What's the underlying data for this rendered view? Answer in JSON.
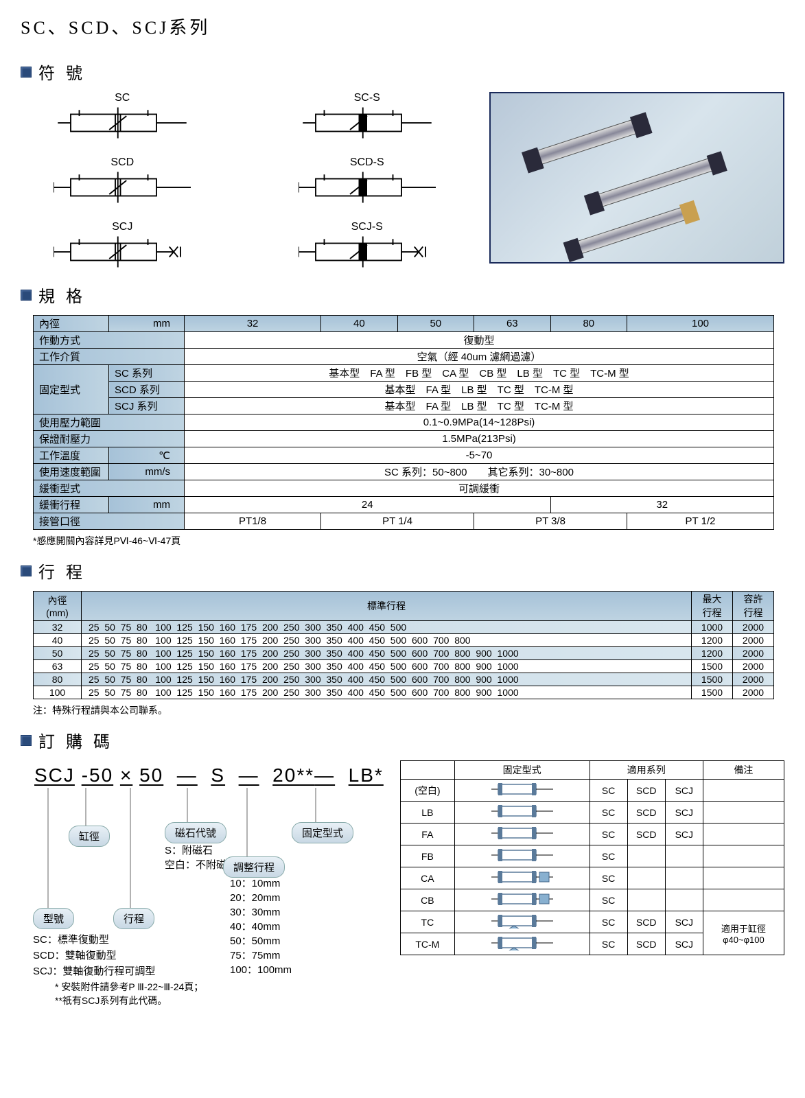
{
  "title": "SC、SCD、SCJ系列",
  "sections": {
    "symbols": "符號",
    "spec": "規格",
    "stroke": "行程",
    "order": "訂購碼"
  },
  "symbols": [
    "SC",
    "SC-S",
    "SCD",
    "SCD-S",
    "SCJ",
    "SCJ-S"
  ],
  "spec": {
    "cols": [
      "32",
      "40",
      "50",
      "63",
      "80",
      "100"
    ],
    "rows": {
      "bore": "內徑",
      "bore_unit": "mm",
      "action": "作動方式",
      "action_val": "復動型",
      "medium": "工作介質",
      "medium_val": "空氣（經 40um 濾網過濾）",
      "mount": "固定型式",
      "sc_series": "SC 系列",
      "sc_val": "基本型　FA 型　FB 型　CA 型　CB 型　LB 型　TC 型　TC-M 型",
      "scd_series": "SCD 系列",
      "scd_val": "基本型　FA 型　LB 型　TC 型　TC-M 型",
      "scj_series": "SCJ 系列",
      "scj_val": "基本型　FA 型　LB 型　TC 型　TC-M 型",
      "pressure": "使用壓力範圍",
      "pressure_val": "0.1~0.9MPa(14~128Psi)",
      "proof": "保證耐壓力",
      "proof_val": "1.5MPa(213Psi)",
      "temp": "工作溫度",
      "temp_unit": "℃",
      "temp_val": "-5~70",
      "speed": "使用速度範圍",
      "speed_unit": "mm/s",
      "speed_val": "SC 系列：50~800　　其它系列：30~800",
      "cushion": "緩衝型式",
      "cushion_val": "可調緩衝",
      "cushion_stroke": "緩衝行程",
      "cushion_stroke_unit": "mm",
      "cushion_24": "24",
      "cushion_32": "32",
      "port": "接管口徑",
      "port_vals": [
        "PT1/8",
        "PT 1/4",
        "PT 3/8",
        "PT 1/2"
      ]
    },
    "footnote": "*感應開關內容詳見PⅥ-46~Ⅵ-47頁"
  },
  "stroke": {
    "bore_hdr": "內徑\n(mm)",
    "std_hdr": "標準行程",
    "max_hdr": "最大\n行程",
    "tol_hdr": "容許\n行程",
    "rows": [
      {
        "b": "32",
        "s": "25  50  75  80   100  125  150  160  175  200  250  300  350  400  450  500",
        "m": "1000",
        "t": "2000"
      },
      {
        "b": "40",
        "s": "25  50  75  80   100  125  150  160  175  200  250  300  350  400  450  500  600  700  800",
        "m": "1200",
        "t": "2000"
      },
      {
        "b": "50",
        "s": "25  50  75  80   100  125  150  160  175  200  250  300  350  400  450  500  600  700  800  900  1000",
        "m": "1200",
        "t": "2000"
      },
      {
        "b": "63",
        "s": "25  50  75  80   100  125  150  160  175  200  250  300  350  400  450  500  600  700  800  900  1000",
        "m": "1500",
        "t": "2000"
      },
      {
        "b": "80",
        "s": "25  50  75  80   100  125  150  160  175  200  250  300  350  400  450  500  600  700  800  900  1000",
        "m": "1500",
        "t": "2000"
      },
      {
        "b": "100",
        "s": "25  50  75  80   100  125  150  160  175  200  250  300  350  400  450  500  600  700  800  900  1000",
        "m": "1500",
        "t": "2000"
      }
    ],
    "note": "注：特殊行程請與本公司聯系。"
  },
  "order": {
    "code": [
      "SCJ",
      "-50",
      "×",
      "50",
      "—",
      "S",
      "—",
      "20**",
      "—",
      "LB*"
    ],
    "pills": {
      "model": "型號",
      "bore": "缸徑",
      "stroke": "行程",
      "magnet": "磁石代號",
      "adjust": "調整行程",
      "mount": "固定型式"
    },
    "magnet_notes": [
      "S：附磁石",
      "空白：不附磁石"
    ],
    "adjust_notes": [
      "10：10mm",
      "20：20mm",
      "30：30mm",
      "40：40mm",
      "50：50mm",
      "75：75mm",
      "100：100mm"
    ],
    "model_notes": [
      "SC：標準復動型",
      "SCD：雙軸復動型",
      "SCJ：雙軸復動行程可調型"
    ],
    "footnotes": [
      "* 安裝附件請參考P Ⅲ-22~Ⅲ-24頁；",
      "**祇有SCJ系列有此代碼。"
    ]
  },
  "mount": {
    "hdrs": [
      "",
      "固定型式",
      "適用系列",
      "",
      "",
      "備注"
    ],
    "rows": [
      {
        "c": "(空白)",
        "s": [
          "SC",
          "SCD",
          "SCJ"
        ],
        "n": ""
      },
      {
        "c": "LB",
        "s": [
          "SC",
          "SCD",
          "SCJ"
        ],
        "n": ""
      },
      {
        "c": "FA",
        "s": [
          "SC",
          "SCD",
          "SCJ"
        ],
        "n": ""
      },
      {
        "c": "FB",
        "s": [
          "SC",
          "",
          ""
        ],
        "n": ""
      },
      {
        "c": "CA",
        "s": [
          "SC",
          "",
          ""
        ],
        "n": ""
      },
      {
        "c": "CB",
        "s": [
          "SC",
          "",
          ""
        ],
        "n": ""
      },
      {
        "c": "TC",
        "s": [
          "SC",
          "SCD",
          "SCJ"
        ],
        "n": "適用于缸徑\nφ40~φ100"
      },
      {
        "c": "TC-M",
        "s": [
          "SC",
          "SCD",
          "SCJ"
        ],
        "n": ""
      }
    ]
  },
  "colors": {
    "hdr_bg": "#a6c2d8",
    "border": "#000000",
    "bullet": "#2a4a7a"
  }
}
